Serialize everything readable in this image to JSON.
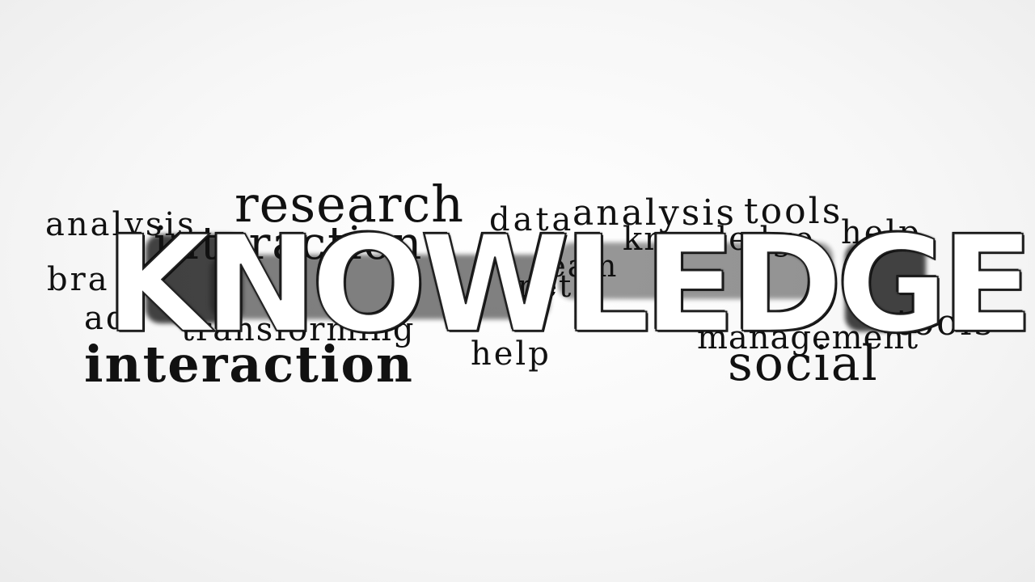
{
  "headline": "KNOWLEDGE",
  "words": {
    "analysis_left": "analysis",
    "research": "research",
    "data": "data",
    "analysis_right": "analysis",
    "tools_top": "tools",
    "help_top_right": "help",
    "brainstorm": "bra",
    "advice": "ad",
    "transforming": "transforming",
    "knowledge_small": "knowledge",
    "interaction_behind": "interaction",
    "teamwork": "team",
    "net": "net",
    "tools_right": "tools",
    "management": "management",
    "interaction": "interaction",
    "help": "help",
    "social": "social"
  },
  "colors": {
    "text": "#111111",
    "headline_fill": "#ffffff",
    "background": "#f5f5f5"
  }
}
